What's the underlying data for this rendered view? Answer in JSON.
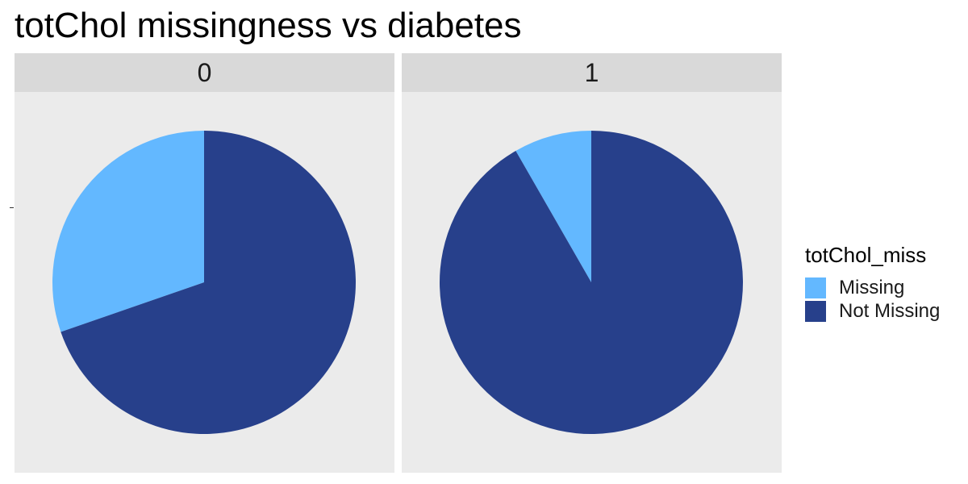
{
  "chart_data": {
    "type": "pie",
    "title": "totChol missingness vs diabetes",
    "facet_variable": "diabetes",
    "legend": {
      "title": "totChol_miss",
      "placement": "right",
      "entries": [
        {
          "label": "Missing",
          "color": "#63b8ff"
        },
        {
          "label": "Not Missing",
          "color": "#27408b"
        }
      ]
    },
    "panels": [
      {
        "label": "0",
        "slices": [
          {
            "category": "Missing",
            "fraction": 0.303
          },
          {
            "category": "Not Missing",
            "fraction": 0.697
          }
        ]
      },
      {
        "label": "1",
        "slices": [
          {
            "category": "Missing",
            "fraction": 0.083
          },
          {
            "category": "Not Missing",
            "fraction": 0.917
          }
        ]
      }
    ]
  }
}
